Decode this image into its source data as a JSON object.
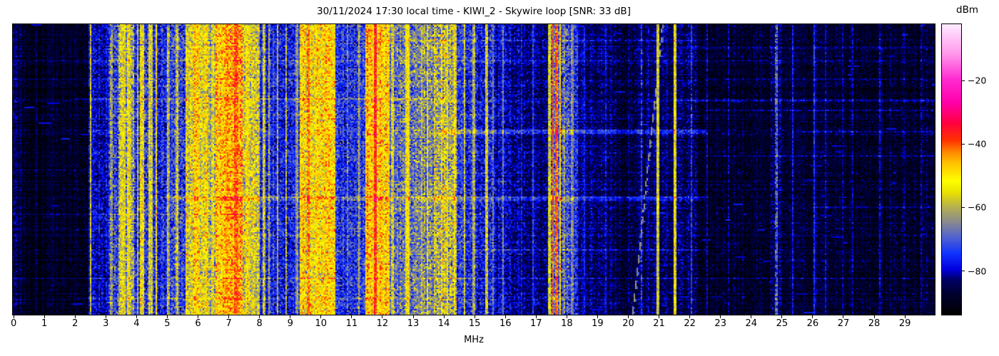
{
  "header": {
    "title": "30/11/2024 17:30 local time - KIWI_2 - Skywire loop [SNR: 33 dB]"
  },
  "chart_data": {
    "type": "heatmap",
    "subtype": "radio-spectrogram-waterfall",
    "title": "30/11/2024 17:30 local time - KIWI_2 - Skywire loop [SNR: 33 dB]",
    "xlabel": "MHz",
    "x_range": [
      0,
      30
    ],
    "x_ticks": [
      0,
      1,
      2,
      3,
      4,
      5,
      6,
      7,
      8,
      9,
      10,
      11,
      12,
      13,
      14,
      15,
      16,
      17,
      18,
      19,
      20,
      21,
      22,
      23,
      24,
      25,
      26,
      27,
      28,
      29
    ],
    "grid": false,
    "legend": "none",
    "colorbar": {
      "label": "dBm",
      "tick_values": [
        -20,
        -40,
        -60,
        -80
      ],
      "tick_labels": [
        "−20",
        "−40",
        "−60",
        "−80"
      ],
      "range_dbm": [
        -94,
        -2
      ],
      "stops": [
        [
          0.0,
          "#000000"
        ],
        [
          0.07,
          "#000030"
        ],
        [
          0.12,
          "#000066"
        ],
        [
          0.155,
          "#0000dd"
        ],
        [
          0.21,
          "#1133ff"
        ],
        [
          0.27,
          "#5566cc"
        ],
        [
          0.32,
          "#8b8b8b"
        ],
        [
          0.37,
          "#b5b050"
        ],
        [
          0.42,
          "#e8e000"
        ],
        [
          0.46,
          "#ffff00"
        ],
        [
          0.52,
          "#ffc400"
        ],
        [
          0.56,
          "#ff8800"
        ],
        [
          0.6,
          "#ff3300"
        ],
        [
          0.66,
          "#ff0040"
        ],
        [
          0.73,
          "#ff00aa"
        ],
        [
          0.81,
          "#ff2ad0"
        ],
        [
          0.9,
          "#ff9aec"
        ],
        [
          1.0,
          "#ffeaff"
        ]
      ]
    },
    "bands_fields": [
      "f0_MHz",
      "f1_MHz",
      "mean_dbm",
      "sigma_db"
    ],
    "bands": [
      [
        0.0,
        0.35,
        -87,
        2.5
      ],
      [
        0.35,
        2.45,
        -89,
        2.5
      ],
      [
        2.45,
        3.1,
        -80,
        4
      ],
      [
        3.1,
        3.45,
        -74,
        6
      ],
      [
        3.45,
        3.95,
        -64,
        7
      ],
      [
        3.95,
        4.55,
        -73,
        6
      ],
      [
        4.55,
        5.15,
        -76,
        5
      ],
      [
        5.15,
        5.6,
        -72,
        6
      ],
      [
        5.6,
        6.35,
        -56,
        6
      ],
      [
        6.35,
        6.6,
        -64,
        6
      ],
      [
        6.6,
        7.5,
        -47,
        6
      ],
      [
        7.5,
        8.05,
        -57,
        6
      ],
      [
        8.05,
        9.35,
        -76,
        5
      ],
      [
        9.35,
        10.5,
        -52,
        6
      ],
      [
        10.5,
        11.45,
        -74,
        5
      ],
      [
        11.45,
        12.25,
        -49,
        6
      ],
      [
        12.25,
        12.95,
        -68,
        6
      ],
      [
        12.95,
        13.7,
        -66,
        6
      ],
      [
        13.7,
        14.45,
        -60,
        7
      ],
      [
        14.45,
        15.1,
        -74,
        5
      ],
      [
        15.1,
        15.7,
        -76,
        5
      ],
      [
        15.7,
        16.3,
        -80,
        4
      ],
      [
        16.3,
        17.4,
        -83,
        3.5
      ],
      [
        17.4,
        18.1,
        -70,
        6
      ],
      [
        18.1,
        18.4,
        -75,
        5
      ],
      [
        18.4,
        19.6,
        -84,
        3
      ],
      [
        19.6,
        20.6,
        -86,
        3
      ],
      [
        20.6,
        21.6,
        -83,
        3
      ],
      [
        21.6,
        22.3,
        -84,
        3.5
      ],
      [
        22.3,
        24.6,
        -88,
        2.8
      ],
      [
        24.6,
        25.1,
        -85,
        3.5
      ],
      [
        25.1,
        30.0,
        -88,
        2.8
      ]
    ],
    "carriers_fields": [
      "f_MHz",
      "width_MHz",
      "level_dbm",
      "sigma_db"
    ],
    "carriers": [
      [
        0.08,
        0.12,
        -84,
        3
      ],
      [
        2.53,
        0.07,
        -60,
        5
      ],
      [
        3.2,
        0.05,
        -64,
        5
      ],
      [
        3.58,
        0.14,
        -57,
        5
      ],
      [
        3.8,
        0.12,
        -56,
        5
      ],
      [
        4.05,
        0.05,
        -61,
        5
      ],
      [
        4.2,
        0.1,
        -54,
        6
      ],
      [
        4.48,
        0.1,
        -57,
        5
      ],
      [
        4.65,
        0.04,
        -49,
        5
      ],
      [
        5.05,
        0.1,
        -59,
        5
      ],
      [
        5.35,
        0.07,
        -58,
        5
      ],
      [
        5.97,
        0.1,
        -48,
        5
      ],
      [
        6.29,
        0.07,
        -51,
        5
      ],
      [
        6.5,
        0.06,
        -57,
        5
      ],
      [
        6.95,
        0.1,
        -44,
        4
      ],
      [
        7.27,
        0.15,
        -39,
        4
      ],
      [
        7.62,
        0.07,
        -51,
        5
      ],
      [
        8.17,
        0.05,
        -61,
        5
      ],
      [
        8.34,
        0.04,
        -62,
        4
      ],
      [
        8.61,
        0.04,
        -64,
        4
      ],
      [
        8.89,
        0.06,
        -59,
        5
      ],
      [
        9.24,
        0.04,
        -64,
        4
      ],
      [
        9.6,
        0.09,
        -41,
        4
      ],
      [
        9.9,
        0.1,
        -48,
        5
      ],
      [
        10.3,
        0.08,
        -51,
        5
      ],
      [
        10.9,
        0.05,
        -67,
        5
      ],
      [
        11.25,
        0.04,
        -64,
        4
      ],
      [
        11.8,
        0.11,
        -40,
        4
      ],
      [
        12.0,
        0.08,
        -46,
        5
      ],
      [
        12.35,
        0.05,
        -58,
        5
      ],
      [
        12.84,
        0.09,
        -54,
        4
      ],
      [
        13.3,
        0.05,
        -57,
        4
      ],
      [
        13.5,
        0.05,
        -57,
        4
      ],
      [
        13.95,
        0.07,
        -49,
        5
      ],
      [
        14.15,
        0.06,
        -55,
        4
      ],
      [
        14.37,
        0.04,
        -51,
        4
      ],
      [
        14.7,
        0.05,
        -61,
        4
      ],
      [
        15.0,
        0.05,
        -58,
        4
      ],
      [
        15.42,
        0.05,
        -59,
        4
      ],
      [
        15.63,
        0.05,
        -68,
        4
      ],
      [
        15.95,
        0.04,
        -66,
        4
      ],
      [
        16.55,
        0.04,
        -76,
        3
      ],
      [
        16.93,
        0.04,
        -72,
        3
      ],
      [
        17.45,
        0.07,
        -56,
        4
      ],
      [
        17.58,
        0.05,
        -42,
        3
      ],
      [
        17.7,
        0.05,
        -44,
        4
      ],
      [
        17.82,
        0.05,
        -52,
        5
      ],
      [
        17.95,
        0.05,
        -62,
        5
      ],
      [
        18.2,
        0.05,
        -65,
        4
      ],
      [
        18.6,
        0.03,
        -77,
        3
      ],
      [
        18.95,
        0.03,
        -78,
        3
      ],
      [
        19.3,
        0.03,
        -76,
        3
      ],
      [
        20.45,
        0.04,
        -71,
        5
      ],
      [
        21.0,
        0.06,
        -57,
        3
      ],
      [
        21.55,
        0.1,
        -53,
        4
      ],
      [
        22.1,
        0.03,
        -74,
        4
      ],
      [
        22.6,
        0.04,
        -80,
        3
      ],
      [
        23.3,
        0.03,
        -82,
        3
      ],
      [
        24.1,
        0.03,
        -81,
        3
      ],
      [
        24.85,
        0.05,
        -72,
        6
      ],
      [
        25.4,
        0.04,
        -79,
        3
      ],
      [
        26.1,
        0.05,
        -79,
        3
      ],
      [
        26.45,
        0.05,
        -80,
        3
      ],
      [
        27.0,
        0.04,
        -79,
        3
      ],
      [
        27.35,
        0.04,
        -78,
        3
      ],
      [
        28.2,
        0.05,
        -79,
        3
      ],
      [
        29.0,
        0.03,
        -82,
        3
      ],
      [
        29.55,
        0.03,
        -81,
        3
      ]
    ],
    "streaks_fields": [
      "t_fraction_from_top",
      "f0_MHz",
      "f1_MHz",
      "boost_db",
      "halfheight_rows"
    ],
    "streaks": [
      [
        0.055,
        12,
        22.5,
        5,
        0
      ],
      [
        0.08,
        21.6,
        30,
        5,
        0
      ],
      [
        0.125,
        0,
        30,
        4,
        0
      ],
      [
        0.185,
        0,
        9,
        6,
        0
      ],
      [
        0.185,
        22.5,
        30,
        7,
        0
      ],
      [
        0.255,
        2,
        14,
        6,
        0
      ],
      [
        0.26,
        21.6,
        30,
        6,
        0
      ],
      [
        0.295,
        22.5,
        30,
        6,
        0
      ],
      [
        0.37,
        14,
        22.5,
        8,
        1
      ],
      [
        0.37,
        25.5,
        30,
        6,
        0
      ],
      [
        0.455,
        22.5,
        30,
        5,
        0
      ],
      [
        0.5,
        0,
        2.5,
        5,
        0
      ],
      [
        0.6,
        5,
        22.5,
        8,
        1
      ],
      [
        0.6,
        0,
        5,
        4,
        0
      ],
      [
        0.63,
        26,
        30,
        5,
        0
      ],
      [
        0.655,
        0,
        8,
        5,
        0
      ],
      [
        0.71,
        0,
        2.5,
        4,
        0
      ],
      [
        0.78,
        15,
        22.5,
        6,
        0
      ],
      [
        0.82,
        25,
        30,
        4,
        0
      ],
      [
        0.875,
        0,
        30,
        4,
        0
      ],
      [
        0.945,
        2,
        13,
        5,
        0
      ]
    ],
    "chirp": {
      "description": "faint diagonal ionosonde sweep, dashed light-gray",
      "f_bottom_MHz": 20.15,
      "f_top_MHz": 21.12,
      "level_dbm": -64
    },
    "noise": {
      "seed": 1337,
      "row_sigma_db": 1.2,
      "col_sigma_db": 1.8,
      "dash_count": 110
    }
  }
}
